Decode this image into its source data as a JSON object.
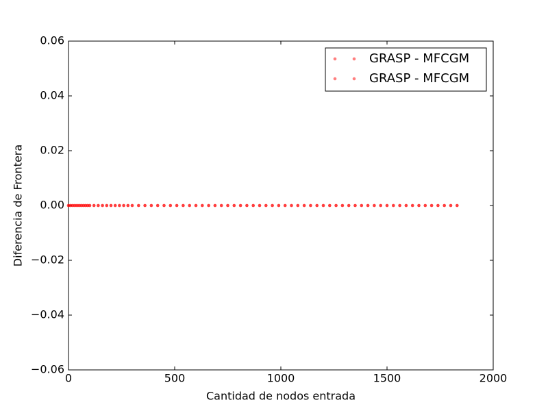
{
  "chart_data": {
    "type": "scatter",
    "x_label": "Cantidad de nodos entrada",
    "y_label": "Diferencia de Frontera",
    "x": [
      0,
      10,
      20,
      30,
      40,
      50,
      60,
      70,
      80,
      90,
      100,
      120,
      140,
      160,
      180,
      200,
      220,
      240,
      260,
      280,
      300,
      330,
      360,
      390,
      420,
      450,
      480,
      510,
      540,
      570,
      600,
      630,
      660,
      690,
      720,
      750,
      780,
      810,
      840,
      870,
      900,
      930,
      960,
      990,
      1020,
      1050,
      1080,
      1110,
      1140,
      1170,
      1200,
      1230,
      1260,
      1290,
      1320,
      1350,
      1380,
      1410,
      1440,
      1470,
      1500,
      1530,
      1560,
      1590,
      1620,
      1650,
      1680,
      1710,
      1740,
      1770,
      1800,
      1830
    ],
    "series": [
      {
        "name": "GRASP - MFCGM",
        "color": "#ff0000",
        "values": [
          0,
          0,
          0,
          0,
          0,
          0,
          0,
          0,
          0,
          0,
          0,
          0,
          0,
          0,
          0,
          0,
          0,
          0,
          0,
          0,
          0,
          0,
          0,
          0,
          0,
          0,
          0,
          0,
          0,
          0,
          0,
          0,
          0,
          0,
          0,
          0,
          0,
          0,
          0,
          0,
          0,
          0,
          0,
          0,
          0,
          0,
          0,
          0,
          0,
          0,
          0,
          0,
          0,
          0,
          0,
          0,
          0,
          0,
          0,
          0,
          0,
          0,
          0,
          0,
          0,
          0,
          0,
          0,
          0,
          0,
          0,
          0
        ]
      },
      {
        "name": "GRASP - MFCGM",
        "color": "#ff0000",
        "values": [
          0,
          0,
          0,
          0,
          0,
          0,
          0,
          0,
          0,
          0,
          0,
          0,
          0,
          0,
          0,
          0,
          0,
          0,
          0,
          0,
          0,
          0,
          0,
          0,
          0,
          0,
          0,
          0,
          0,
          0,
          0,
          0,
          0,
          0,
          0,
          0,
          0,
          0,
          0,
          0,
          0,
          0,
          0,
          0,
          0,
          0,
          0,
          0,
          0,
          0,
          0,
          0,
          0,
          0,
          0,
          0,
          0,
          0,
          0,
          0,
          0,
          0,
          0,
          0,
          0,
          0,
          0,
          0,
          0,
          0,
          0,
          0
        ]
      }
    ],
    "xlim": [
      0,
      2000
    ],
    "xticks": [
      0,
      500,
      1000,
      1500,
      2000
    ],
    "ylim": [
      -0.06,
      0.06
    ],
    "yticks": [
      {
        "value": -0.06,
        "label": "−0.06"
      },
      {
        "value": -0.04,
        "label": "−0.04"
      },
      {
        "value": -0.02,
        "label": "−0.02"
      },
      {
        "value": 0,
        "label": "0.00"
      },
      0.02,
      0.04,
      0.06
    ],
    "legend": "upper right",
    "grid": false
  }
}
